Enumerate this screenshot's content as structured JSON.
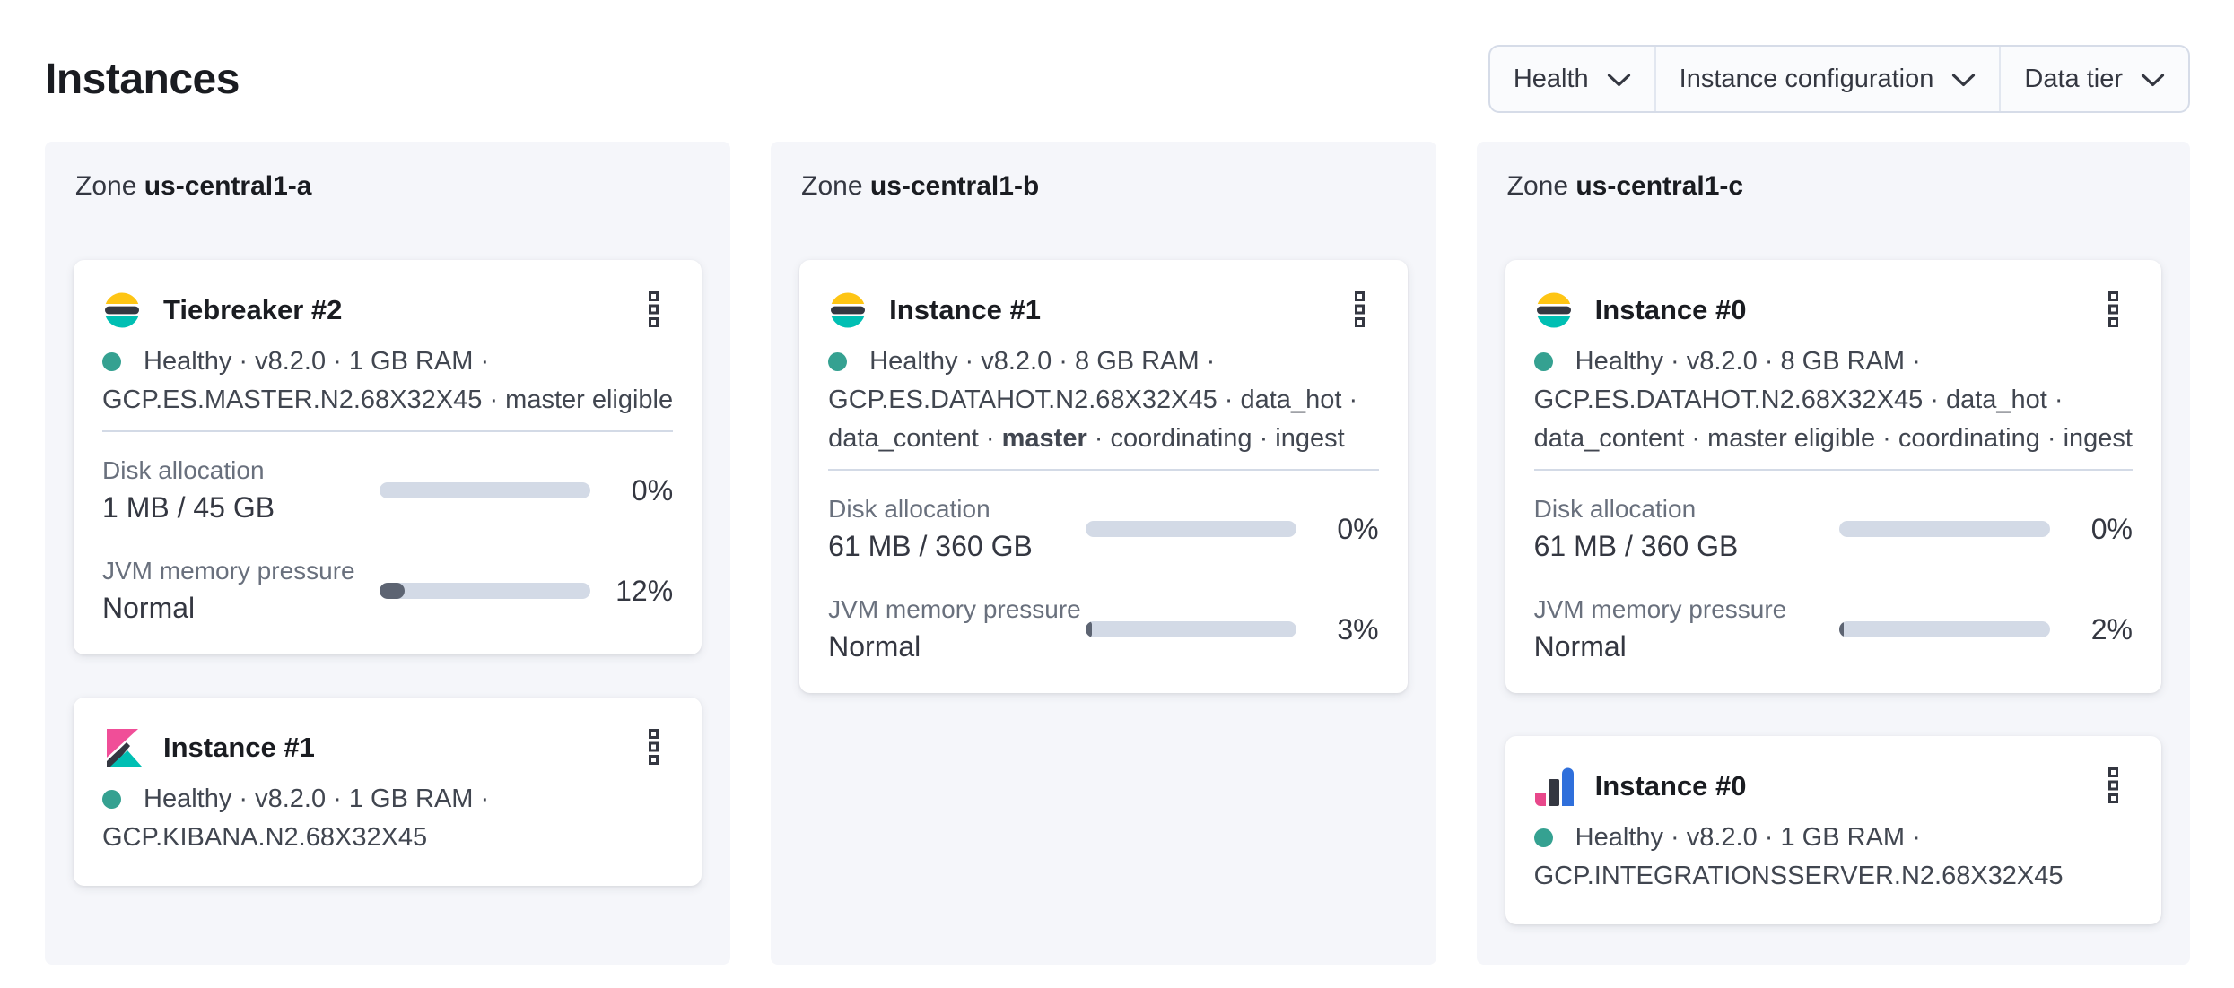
{
  "page": {
    "title": "Instances"
  },
  "filters": [
    {
      "label": "Health",
      "icon": "chevron-down"
    },
    {
      "label": "Instance configuration",
      "icon": "chevron-down"
    },
    {
      "label": "Data tier",
      "icon": "chevron-down"
    }
  ],
  "icons": {
    "card_menu": "kebab-vertical-boxes",
    "health": "teal-dot"
  },
  "colors": {
    "health_dot": "#35a191",
    "zone_background": "#f5f6fa",
    "progress_track": "#d3dae6",
    "progress_fill": "#5d6472",
    "logo_yellow": "#fec514",
    "logo_dark": "#343741",
    "logo_teal": "#00bfb3",
    "logo_pink": "#f04e98",
    "logo_blue": "#2f6fdb"
  },
  "zones": [
    {
      "label_prefix": "Zone",
      "name": "us-central1-a",
      "cards": [
        {
          "logo": "elasticsearch",
          "title": "Tiebreaker #2",
          "status_lines": [
            "Healthy · v8.2.0 · 1 GB RAM ·",
            "GCP.ES.MASTER.N2.68X32X45 · master eligible"
          ],
          "metrics": [
            {
              "label": "Disk allocation",
              "value": "1 MB / 45 GB",
              "percent": "0%",
              "fill": 0
            },
            {
              "label": "JVM memory pressure",
              "value": "Normal",
              "percent": "12%",
              "fill": 12
            }
          ]
        },
        {
          "logo": "kibana",
          "title": "Instance #1",
          "status_lines": [
            "Healthy · v8.2.0 · 1 GB RAM ·",
            "GCP.KIBANA.N2.68X32X45"
          ],
          "metrics": []
        }
      ]
    },
    {
      "label_prefix": "Zone",
      "name": "us-central1-b",
      "cards": [
        {
          "logo": "elasticsearch",
          "title": "Instance #1",
          "status_lines": [
            "Healthy · v8.2.0 · 8 GB RAM ·",
            "GCP.ES.DATAHOT.N2.68X32X45 · data_hot ·",
            [
              {
                "text": "data_content · ",
                "bold": false
              },
              {
                "text": "master",
                "bold": true
              },
              {
                "text": " · coordinating · ingest",
                "bold": false
              }
            ]
          ],
          "metrics": [
            {
              "label": "Disk allocation",
              "value": "61 MB / 360 GB",
              "percent": "0%",
              "fill": 0
            },
            {
              "label": "JVM memory pressure",
              "value": "Normal",
              "percent": "3%",
              "fill": 3
            }
          ]
        }
      ]
    },
    {
      "label_prefix": "Zone",
      "name": "us-central1-c",
      "cards": [
        {
          "logo": "elasticsearch",
          "title": "Instance #0",
          "status_lines": [
            "Healthy · v8.2.0 · 8 GB RAM ·",
            "GCP.ES.DATAHOT.N2.68X32X45 · data_hot ·",
            "data_content · master eligible · coordinating · ingest"
          ],
          "metrics": [
            {
              "label": "Disk allocation",
              "value": "61 MB / 360 GB",
              "percent": "0%",
              "fill": 0
            },
            {
              "label": "JVM memory pressure",
              "value": "Normal",
              "percent": "2%",
              "fill": 2
            }
          ]
        },
        {
          "logo": "integrations-server",
          "title": "Instance #0",
          "status_lines": [
            "Healthy · v8.2.0 · 1 GB RAM ·",
            "GCP.INTEGRATIONSSERVER.N2.68X32X45"
          ],
          "metrics": []
        }
      ]
    }
  ]
}
